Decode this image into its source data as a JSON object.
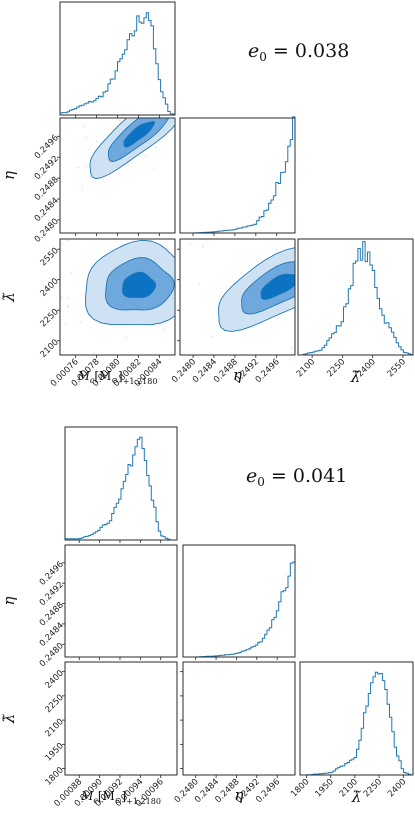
{
  "chart_data": [
    {
      "type": "corner",
      "annotation": "e_0 = 0.038",
      "annotation_lhs": "e",
      "annotation_sub": "0",
      "annotation_rhs": " = 0.038",
      "parameters": [
        {
          "symbol": "M_c[M_⊙]+1.2180",
          "label_main": "M",
          "label_sub1": "c",
          "label_bracket": "[M",
          "label_sub2": "⊙",
          "label_close": "]",
          "label_offset": "+1.2180",
          "range": [
            0.000745,
            0.000855
          ],
          "ticks": [
            0.00076,
            0.00078,
            0.0008,
            0.00082,
            0.00084
          ],
          "tick_labels": [
            "0.00076",
            "0.00078",
            "0.00080",
            "0.00082",
            "0.00084"
          ]
        },
        {
          "symbol": "η",
          "label_main": "η",
          "range": [
            0.24775,
            0.24995
          ],
          "ticks": [
            0.248,
            0.2484,
            0.2488,
            0.2492,
            0.2496
          ],
          "tick_labels": [
            "0.2480",
            "0.2484",
            "0.2488",
            "0.2492",
            "0.2496"
          ]
        },
        {
          "symbol": "λ̃",
          "label_main": "λ̃",
          "range": [
            2030,
            2600
          ],
          "ticks": [
            2100,
            2250,
            2400,
            2550
          ],
          "tick_labels": [
            "2100",
            "2250",
            "2400",
            "2550"
          ]
        }
      ],
      "marginals": [
        {
          "parameter": "M_c",
          "x": [
            0.00075,
            0.00076,
            0.00077,
            0.00078,
            0.00079,
            0.0008,
            0.00081,
            0.00082,
            0.00083,
            0.00084,
            0.00085
          ],
          "density": [
            0.02,
            0.06,
            0.1,
            0.14,
            0.22,
            0.42,
            0.62,
            0.85,
            0.95,
            0.3,
            0.01
          ]
        },
        {
          "parameter": "η",
          "x": [
            0.248,
            0.2484,
            0.2488,
            0.2492,
            0.2494,
            0.2496,
            0.2498,
            0.2499
          ],
          "density": [
            0.0,
            0.01,
            0.03,
            0.08,
            0.2,
            0.4,
            0.65,
            0.95
          ]
        },
        {
          "parameter": "λ̃",
          "x": [
            2050,
            2150,
            2250,
            2300,
            2350,
            2400,
            2450,
            2550,
            2600
          ],
          "density": [
            0.0,
            0.05,
            0.3,
            0.7,
            0.95,
            0.75,
            0.35,
            0.03,
            0.0
          ]
        }
      ],
      "posterior_mode": {
        "M_c": 0.00082,
        "eta": 0.24965,
        "lambda": 2370
      },
      "contour_levels": 3
    },
    {
      "type": "corner",
      "annotation": "e_0 = 0.041",
      "annotation_lhs": "e",
      "annotation_sub": "0",
      "annotation_rhs": " = 0.041",
      "parameters": [
        {
          "symbol": "M_c[M_⊙]+1.2180",
          "label_main": "M",
          "label_sub1": "c",
          "label_bracket": "[M",
          "label_sub2": "⊙",
          "label_close": "]",
          "label_offset": "+1.2180",
          "range": [
            0.000866,
            0.000976
          ],
          "ticks": [
            0.00088,
            0.0009,
            0.00092,
            0.00094,
            0.00096
          ],
          "tick_labels": [
            "0.00088",
            "0.00090",
            "0.00092",
            "0.00094",
            "0.00096"
          ]
        },
        {
          "symbol": "η",
          "label_main": "η",
          "range": [
            0.24775,
            0.24995
          ],
          "ticks": [
            0.248,
            0.2484,
            0.2488,
            0.2492,
            0.2496
          ],
          "tick_labels": [
            "0.2480",
            "0.2484",
            "0.2488",
            "0.2492",
            "0.2496"
          ]
        },
        {
          "symbol": "λ̃",
          "label_main": "λ̃",
          "range": [
            1760,
            2460
          ],
          "ticks": [
            1800,
            1950,
            2100,
            2250,
            2400
          ],
          "tick_labels": [
            "1800",
            "1950",
            "2100",
            "2250",
            "2400"
          ]
        }
      ],
      "marginals": [
        {
          "parameter": "M_c",
          "x": [
            0.00088,
            0.00089,
            0.0009,
            0.00091,
            0.00092,
            0.00093,
            0.00094,
            0.00095,
            0.00096,
            0.00097
          ],
          "density": [
            0.01,
            0.04,
            0.1,
            0.18,
            0.35,
            0.7,
            0.95,
            0.45,
            0.04,
            0.0
          ]
        },
        {
          "parameter": "η",
          "x": [
            0.248,
            0.2484,
            0.2488,
            0.2492,
            0.2494,
            0.2496,
            0.2498,
            0.2499
          ],
          "density": [
            0.0,
            0.01,
            0.03,
            0.1,
            0.22,
            0.42,
            0.7,
            0.95
          ]
        },
        {
          "parameter": "λ̃",
          "x": [
            1800,
            1950,
            2100,
            2200,
            2250,
            2300,
            2350,
            2400,
            2450
          ],
          "density": [
            0.0,
            0.02,
            0.15,
            0.75,
            0.95,
            0.7,
            0.25,
            0.03,
            0.0
          ]
        }
      ],
      "posterior_mode": {
        "M_c": 0.00094,
        "eta": 0.24965,
        "lambda": 2250
      },
      "contour_levels": 3
    }
  ]
}
